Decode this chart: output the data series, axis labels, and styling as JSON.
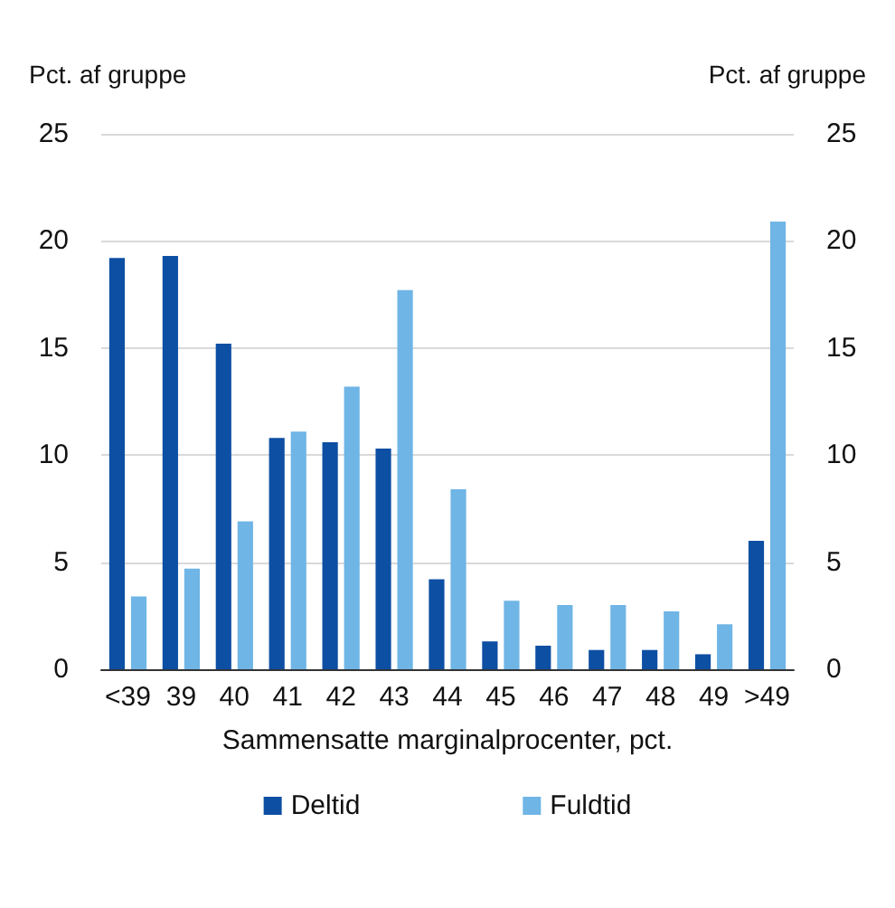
{
  "chart_data": {
    "type": "bar",
    "xlabel": "Sammensatte marginalprocenter, pct.",
    "ylabel": "Pct. af gruppe",
    "y2label": "Pct. af gruppe",
    "categories": [
      "<39",
      "39",
      "40",
      "41",
      "42",
      "43",
      "44",
      "45",
      "46",
      "47",
      "48",
      "49",
      ">49"
    ],
    "series": [
      {
        "name": "Deltid",
        "color": "#0d4fa3",
        "values": [
          19.2,
          19.3,
          15.2,
          10.8,
          10.6,
          10.3,
          4.2,
          1.3,
          1.1,
          0.9,
          0.9,
          0.7,
          6.0
        ]
      },
      {
        "name": "Fuldtid",
        "color": "#6fb5e6",
        "values": [
          3.4,
          4.7,
          6.9,
          11.1,
          13.2,
          17.7,
          8.4,
          3.2,
          3.0,
          3.0,
          2.7,
          2.1,
          20.9
        ]
      }
    ],
    "ylim": [
      0,
      25
    ],
    "yticks": [
      0,
      5,
      10,
      15,
      20,
      25
    ],
    "y2lim": [
      0,
      25
    ],
    "y2ticks": [
      0,
      5,
      10,
      15,
      20,
      25
    ],
    "grid": "y",
    "legend": "bottom"
  }
}
